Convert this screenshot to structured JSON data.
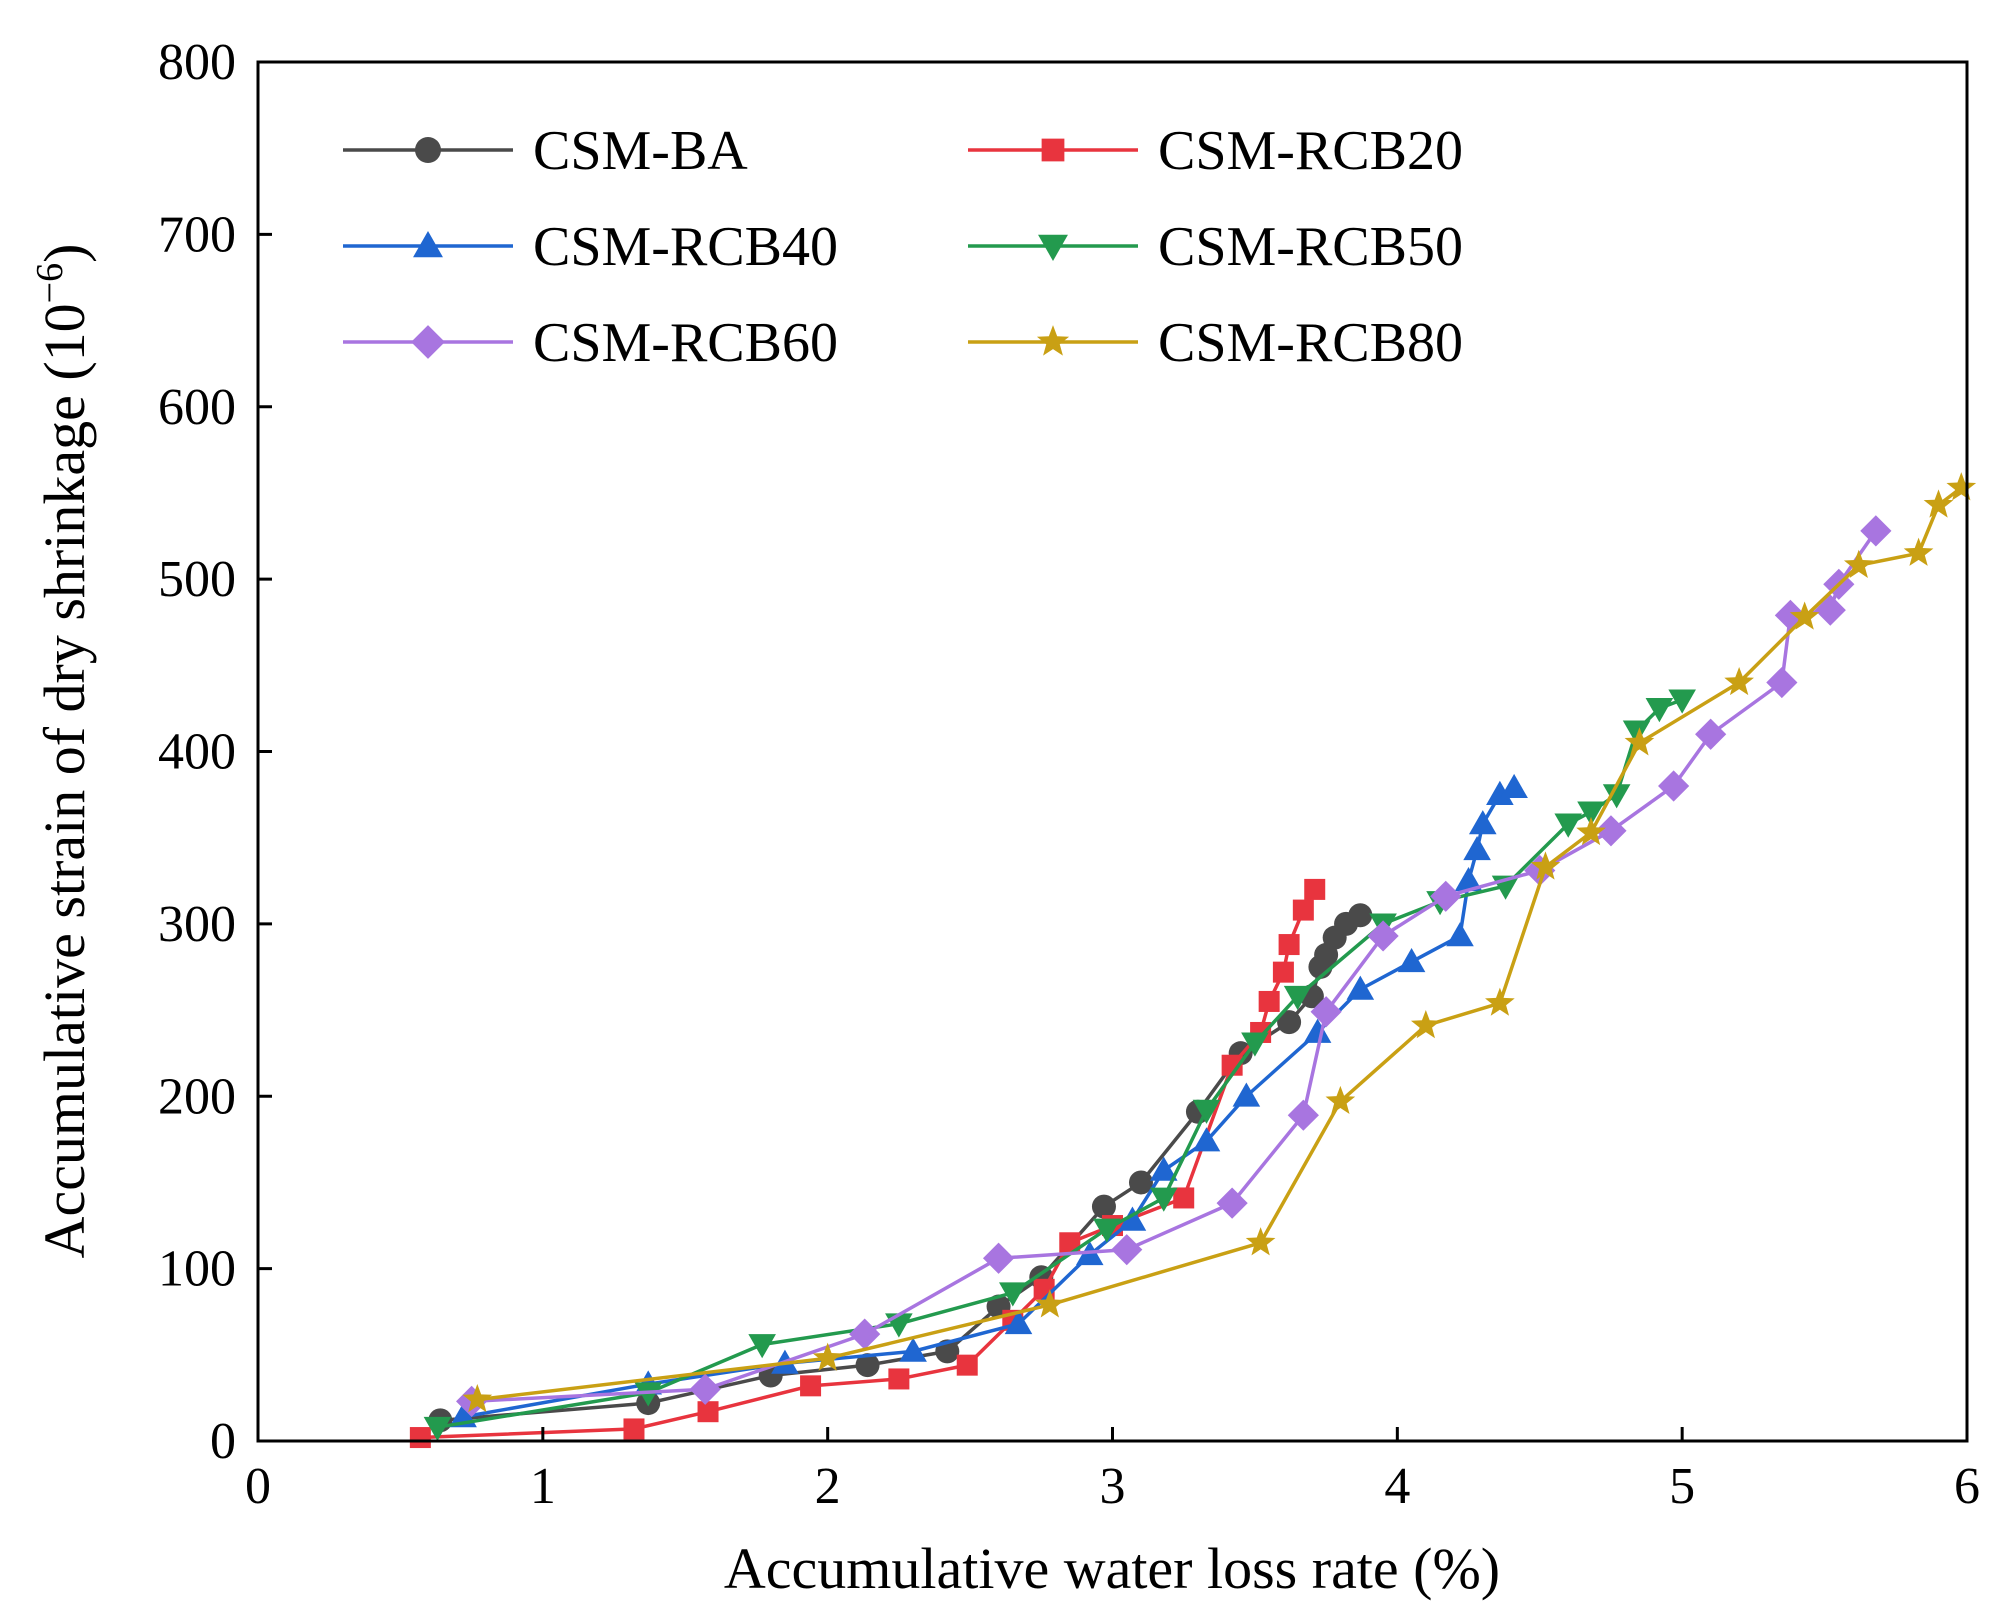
{
  "chart_data": {
    "type": "line",
    "title": "",
    "xlabel": "Accumulative water loss rate (%)",
    "ylabel": "Accumulative strain of dry shrinkage (10",
    "ylabel_unit_exponent": "−6",
    "ylabel_suffix": ")",
    "xlim": [
      0,
      6
    ],
    "ylim": [
      0,
      800
    ],
    "xticks": [
      "0",
      "1",
      "2",
      "3",
      "4",
      "5",
      "6"
    ],
    "yticks": [
      "0",
      "100",
      "200",
      "300",
      "400",
      "500",
      "600",
      "700",
      "800"
    ],
    "xtick_values": [
      0,
      1,
      2,
      3,
      4,
      5,
      6
    ],
    "ytick_values": [
      0,
      100,
      200,
      300,
      400,
      500,
      600,
      700,
      800
    ],
    "grid": false,
    "legend_position": "top-left",
    "series": [
      {
        "name": "CSM-BA",
        "color": "#4a4a4a",
        "marker": "circle",
        "x": [
          0.64,
          1.37,
          1.8,
          2.14,
          2.42,
          2.6,
          2.75,
          2.97,
          3.1,
          3.3,
          3.45,
          3.62,
          3.7,
          3.73,
          3.75,
          3.78,
          3.82,
          3.87
        ],
        "y": [
          12,
          22,
          38,
          44,
          52,
          78,
          95,
          136,
          150,
          191,
          225,
          243,
          258,
          275,
          282,
          292,
          300,
          305
        ]
      },
      {
        "name": "CSM-RCB20",
        "color": "#e8343e",
        "marker": "square",
        "x": [
          0.57,
          1.32,
          1.58,
          1.94,
          2.25,
          2.49,
          2.65,
          2.76,
          2.85,
          3.0,
          3.25,
          3.42,
          3.52,
          3.55,
          3.6,
          3.62,
          3.67,
          3.71
        ],
        "y": [
          2,
          7,
          17,
          32,
          36,
          44,
          70,
          88,
          115,
          125,
          141,
          218,
          237,
          255,
          272,
          288,
          308,
          320
        ]
      },
      {
        "name": "CSM-RCB40",
        "color": "#1f66d1",
        "marker": "triangle-up",
        "x": [
          0.72,
          1.37,
          1.85,
          2.3,
          2.67,
          2.92,
          3.07,
          3.18,
          3.33,
          3.47,
          3.72,
          3.87,
          4.05,
          4.22,
          4.25,
          4.28,
          4.3,
          4.36,
          4.41
        ],
        "y": [
          14,
          33,
          45,
          52,
          68,
          108,
          128,
          157,
          174,
          200,
          237,
          262,
          278,
          293,
          325,
          343,
          358,
          375,
          379
        ]
      },
      {
        "name": "CSM-RCB50",
        "color": "#239a4e",
        "marker": "triangle-down",
        "x": [
          0.63,
          1.37,
          1.77,
          2.25,
          2.65,
          2.98,
          3.18,
          3.33,
          3.5,
          3.65,
          3.95,
          4.15,
          4.38,
          4.6,
          4.68,
          4.77,
          4.84,
          4.92,
          5.0
        ],
        "y": [
          8,
          28,
          56,
          68,
          86,
          123,
          141,
          192,
          231,
          258,
          300,
          313,
          322,
          358,
          365,
          375,
          412,
          425,
          430
        ]
      },
      {
        "name": "CSM-RCB60",
        "color": "#a875e0",
        "marker": "diamond",
        "x": [
          0.75,
          1.57,
          2.13,
          2.6,
          3.05,
          3.42,
          3.67,
          3.75,
          3.95,
          4.17,
          4.5,
          4.75,
          4.97,
          5.1,
          5.35,
          5.38,
          5.52,
          5.55,
          5.68
        ],
        "y": [
          23,
          30,
          62,
          106,
          111,
          138,
          189,
          249,
          293,
          316,
          331,
          354,
          380,
          410,
          440,
          479,
          482,
          497,
          528
        ]
      },
      {
        "name": "CSM-RCB80",
        "color": "#c9a014",
        "marker": "star",
        "x": [
          0.77,
          2.0,
          2.78,
          3.52,
          3.8,
          4.1,
          4.36,
          4.52,
          4.68,
          4.85,
          5.2,
          5.43,
          5.62,
          5.83,
          5.9,
          5.98
        ],
        "y": [
          24,
          48,
          79,
          115,
          197,
          241,
          254,
          333,
          353,
          405,
          440,
          478,
          508,
          515,
          543,
          553
        ]
      }
    ]
  }
}
